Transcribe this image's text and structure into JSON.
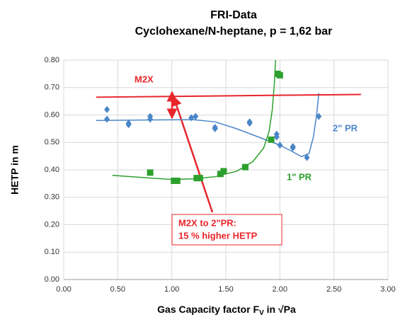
{
  "chart_data": {
    "type": "scatter",
    "title": "FRI-Data",
    "subtitle": "Cyclohexane/N-heptane, p = 1,62 bar",
    "ylabel": "HETP in m",
    "xlabel": [
      "Gas Capacity factor F",
      "V",
      " in √Pa"
    ],
    "annotation": [
      "M2X to 2\"PR:",
      "15 % higher HETP"
    ],
    "xlim": [
      0,
      3
    ],
    "ylim": [
      0,
      0.8
    ],
    "xticks": [
      {
        "value": 0,
        "label": "0.00"
      },
      {
        "value": 0.5,
        "label": "0.50"
      },
      {
        "value": 1,
        "label": "1.00"
      },
      {
        "value": 1.5,
        "label": "1.50"
      },
      {
        "value": 2,
        "label": "2.00"
      },
      {
        "value": 2.5,
        "label": "2.50"
      },
      {
        "value": 3,
        "label": "3.00"
      }
    ],
    "yticks": [
      {
        "value": 0,
        "label": "0.00"
      },
      {
        "value": 0.1,
        "label": "0.10"
      },
      {
        "value": 0.2,
        "label": "0.20"
      },
      {
        "value": 0.3,
        "label": "0.30"
      },
      {
        "value": 0.4,
        "label": "0.40"
      },
      {
        "value": 0.5,
        "label": "0.50"
      },
      {
        "value": 0.6,
        "label": "0.60"
      },
      {
        "value": 0.7,
        "label": "0.70"
      },
      {
        "value": 0.8,
        "label": "0.80"
      }
    ],
    "grid": true,
    "series": [
      {
        "name": "2\" PR",
        "color": "#4a86c8",
        "marker": "diamond",
        "x": [
          0.4,
          0.4,
          0.6,
          0.6,
          0.8,
          0.8,
          1.18,
          1.22,
          1.4,
          1.4,
          1.72,
          1.72,
          1.97,
          1.97,
          2.0,
          2.12,
          2.12,
          2.25,
          2.36
        ],
        "values": [
          0.62,
          0.585,
          0.57,
          0.565,
          0.595,
          0.585,
          0.59,
          0.595,
          0.555,
          0.55,
          0.575,
          0.57,
          0.53,
          0.52,
          0.49,
          0.485,
          0.48,
          0.445,
          0.595
        ],
        "fit_x": [
          0.3,
          0.8,
          1.2,
          1.4,
          1.6,
          1.8,
          2.0,
          2.1,
          2.2,
          2.27,
          2.31,
          2.34,
          2.36
        ],
        "fit_values": [
          0.58,
          0.582,
          0.583,
          0.575,
          0.55,
          0.52,
          0.49,
          0.47,
          0.448,
          0.46,
          0.52,
          0.6,
          0.68
        ]
      },
      {
        "name": "1\" PR",
        "color": "#2ca02c",
        "marker": "square",
        "x": [
          0.8,
          1.02,
          1.05,
          1.23,
          1.26,
          1.45,
          1.48,
          1.68,
          1.92,
          1.98,
          2.0
        ],
        "values": [
          0.39,
          0.36,
          0.36,
          0.37,
          0.37,
          0.385,
          0.395,
          0.41,
          0.51,
          0.75,
          0.745
        ],
        "fit_x": [
          0.45,
          0.8,
          1.0,
          1.2,
          1.4,
          1.6,
          1.75,
          1.85,
          1.9,
          1.93,
          1.95,
          1.96
        ],
        "fit_values": [
          0.38,
          0.37,
          0.365,
          0.367,
          0.375,
          0.395,
          0.43,
          0.48,
          0.54,
          0.62,
          0.72,
          0.8
        ]
      },
      {
        "name": "M2X",
        "color": "#e8262b",
        "x": [],
        "values": [],
        "fit_x": [
          0.3,
          2.75
        ],
        "fit_values": [
          0.665,
          0.675
        ]
      }
    ]
  }
}
